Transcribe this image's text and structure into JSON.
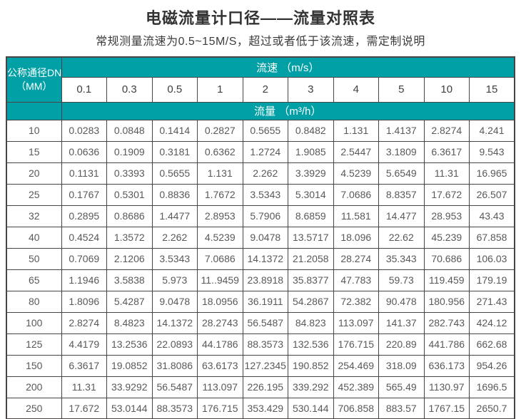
{
  "page": {
    "title": "电磁流量计口径——流量对照表",
    "subtitle": "常规测量流速为0.5~15M/S，超过或者低于该流速，需定制说明"
  },
  "table": {
    "corner_header_line1": "公称通径DN",
    "corner_header_line2": "（MM）",
    "velocity_band_label": "流速 （m/s）",
    "flow_band_label": "流量 （m³/h）",
    "velocity_values": [
      "0.1",
      "0.3",
      "0.5",
      "1",
      "2",
      "3",
      "4",
      "5",
      "10",
      "15"
    ],
    "rows": [
      {
        "dn": "10",
        "values": [
          "0.0283",
          "0.0848",
          "0.1414",
          "0.2827",
          "0.5655",
          "0.8482",
          "1.131",
          "1.4137",
          "2.8274",
          "4.241"
        ]
      },
      {
        "dn": "15",
        "values": [
          "0.0636",
          "0.1909",
          "0.3181",
          "0.6362",
          "1.2724",
          "1.9085",
          "2.5447",
          "3.1809",
          "6.3617",
          "9.543"
        ]
      },
      {
        "dn": "20",
        "values": [
          "0.1131",
          "0.3393",
          "0.5655",
          "1.131",
          "2.262",
          "3.3929",
          "4.5239",
          "5.6549",
          "11.31",
          "16.965"
        ]
      },
      {
        "dn": "25",
        "values": [
          "0.1767",
          "0.5301",
          "0.8836",
          "1.7672",
          "3.5343",
          "5.3014",
          "7.0686",
          "8.8357",
          "17.672",
          "26.507"
        ]
      },
      {
        "dn": "32",
        "values": [
          "0.2895",
          "0.8686",
          "1.4477",
          "2.8953",
          "5.7906",
          "8.6859",
          "11.581",
          "14.477",
          "28.953",
          "43.43"
        ]
      },
      {
        "dn": "40",
        "values": [
          "0.4524",
          "1.3572",
          "2.262",
          "4.5239",
          "9.0478",
          "13.5717",
          "18.096",
          "22.62",
          "45.239",
          "67.858"
        ]
      },
      {
        "dn": "50",
        "values": [
          "0.7069",
          "2.1206",
          "3.5343",
          "7.0686",
          "14.1372",
          "21.2058",
          "28.274",
          "35.343",
          "70.686",
          "106.03"
        ]
      },
      {
        "dn": "65",
        "values": [
          "1.1946",
          "3.5838",
          "5.973",
          "11..9459",
          "23.8918",
          "35.8377",
          "47.783",
          "59.73",
          "119.459",
          "179.19"
        ]
      },
      {
        "dn": "80",
        "values": [
          "1.8096",
          "5.4287",
          "9.0478",
          "18.0956",
          "36.1911",
          "54.2867",
          "72.382",
          "90.478",
          "180.956",
          "271.43"
        ]
      },
      {
        "dn": "100",
        "values": [
          "2.8274",
          "8.4823",
          "14.1372",
          "28.2743",
          "56.5487",
          "84.823",
          "113.097",
          "141.37",
          "282.743",
          "424.12"
        ]
      },
      {
        "dn": "125",
        "values": [
          "4.4179",
          "13.2536",
          "22.0893",
          "44.1786",
          "88.3573",
          "132.536",
          "176.715",
          "220.89",
          "441.786",
          "662.68"
        ]
      },
      {
        "dn": "150",
        "values": [
          "6.3617",
          "19.0852",
          "31.8086",
          "63.6173",
          "127.2345",
          "190.852",
          "254.469",
          "318.09",
          "636.173",
          "954.26"
        ]
      },
      {
        "dn": "200",
        "values": [
          "11.31",
          "33.9292",
          "56.5487",
          "113.097",
          "226.195",
          "339.292",
          "452.389",
          "565.49",
          "1130.97",
          "1696.5"
        ]
      },
      {
        "dn": "250",
        "values": [
          "17.672",
          "53.0144",
          "88.3573",
          "176.715",
          "353.429",
          "530.144",
          "706.858",
          "883.57",
          "1767.15",
          "2650.7"
        ]
      }
    ]
  },
  "colors": {
    "header_teal": "#00a0a6",
    "border": "#4a4444",
    "body_text": "#595959",
    "title_text": "#333333"
  }
}
